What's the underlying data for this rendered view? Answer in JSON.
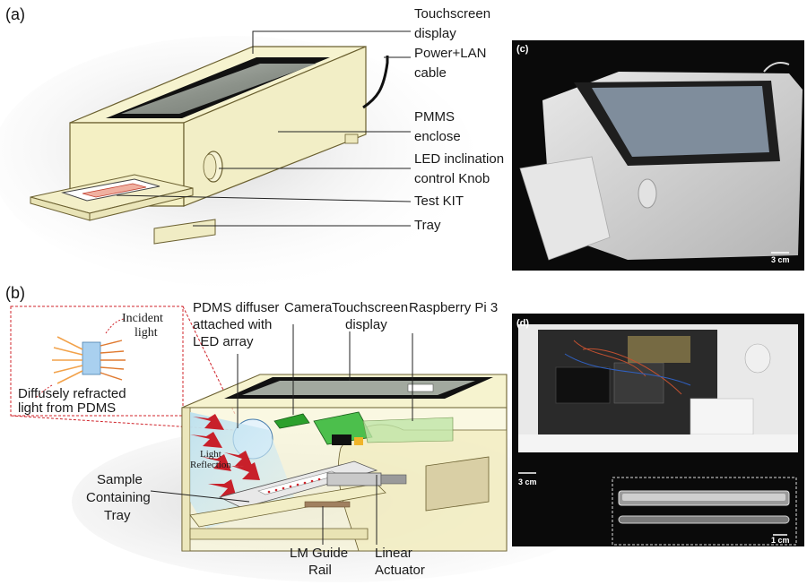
{
  "panels": {
    "a": {
      "letter": "(a)",
      "labels": {
        "touchscreen_1": "Touchscreen",
        "touchscreen_2": "display",
        "power_1": "Power+LAN",
        "power_2": "cable",
        "pmms_1": "PMMS",
        "pmms_2": "enclose",
        "led_1": "LED inclination",
        "led_2": "control Knob",
        "testkit": "Test KIT",
        "tray": "Tray"
      }
    },
    "b": {
      "letter": "(b)",
      "labels": {
        "incident_1": "Incident",
        "incident_2": "light",
        "diffuse_1": "Diffusely refracted",
        "diffuse_2": "light from PDMS",
        "pdms_1": "PDMS diffuser",
        "pdms_2": "attached with",
        "pdms_3": "LED array",
        "camera": "Camera",
        "touch_1": "Touchscreen",
        "touch_2": "display",
        "rpi": "Raspberry Pi 3",
        "reflection_1": "Light",
        "reflection_2": "Reflection",
        "sample_1": "Sample",
        "sample_2": "Containing",
        "sample_3": "Tray",
        "lm_1": "LM Guide",
        "lm_2": "Rail",
        "linear_1": "Linear",
        "linear_2": "Actuator"
      }
    },
    "c": {
      "letter": "(c)",
      "scale": "3 cm"
    },
    "d": {
      "letter": "(d)",
      "scale_main": "3 cm",
      "scale_inset": "1 cm"
    }
  },
  "colors": {
    "enclosure": "#f6f3cf",
    "enclosure_edge": "#6b6030",
    "screen_frame": "#111111",
    "screen": "#8f958c",
    "arrow_red": "#c8202a",
    "callout_dash": "#d0242b",
    "photo_bg": "#0a0a0a"
  }
}
